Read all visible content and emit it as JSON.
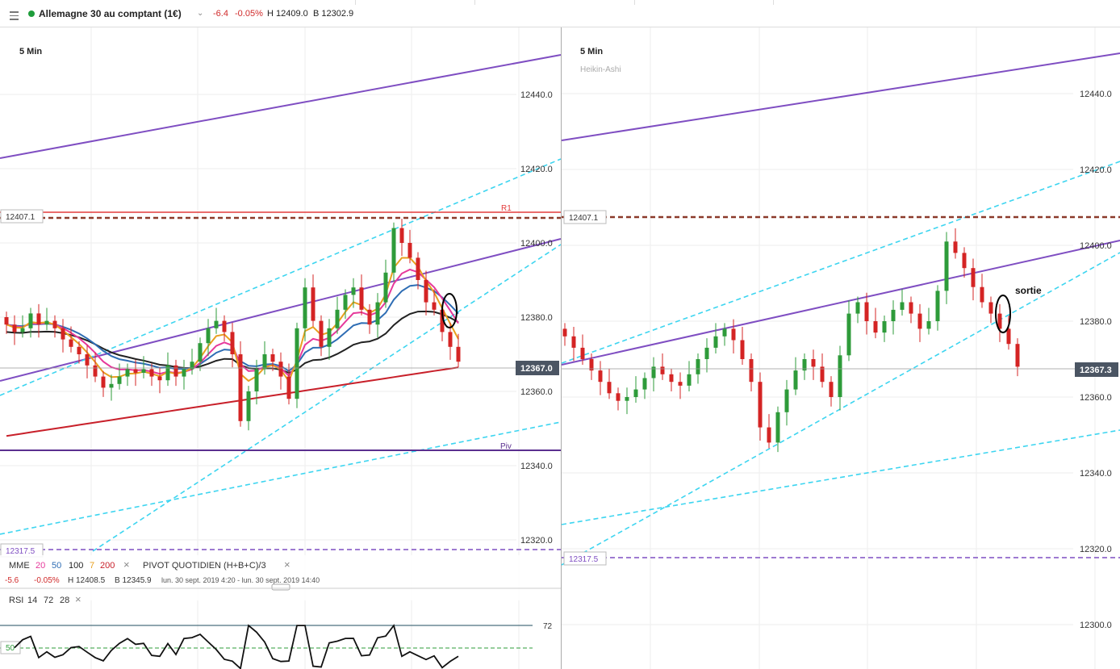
{
  "header": {
    "instrument": "Allemagne 30 au comptant (1€)",
    "change": "-6.4",
    "change_pct": "-0.05%",
    "high": "H 12409.0",
    "bid": "B 12302.9",
    "status_color": "#1f9d3b"
  },
  "left_chart": {
    "timeframe": "5 Min",
    "level_r1_tag": "12407.1",
    "r1_label": "R1",
    "piv_label": "Piv",
    "level_low_tag": "12317.5",
    "last_price_tag": "12367.0",
    "price_ticks": [
      "12440.0",
      "12420.0",
      "12400.0",
      "12380.0",
      "12360.0",
      "12340.0",
      "12320.0"
    ],
    "indicator_legend": {
      "name": "MME",
      "periods": [
        "20",
        "50",
        "100",
        "7",
        "200"
      ],
      "period_colors": [
        "#e6399b",
        "#2e6db4",
        "#222222",
        "#e8a020",
        "#c8202a"
      ],
      "pivot": "PIVOT QUOTIDIEN (H+B+C)/3",
      "stats_change": "-5.6",
      "stats_pct": "-0.05%",
      "stats_high": "H 12408.5",
      "stats_bid": "B 12345.9",
      "date_range": "lun. 30 sept. 2019 4:20 - lun. 30 sept. 2019 14:40"
    },
    "rsi": {
      "name": "RSI",
      "params": [
        "14",
        "72",
        "28"
      ],
      "levels": [
        "72",
        "50"
      ]
    }
  },
  "right_chart": {
    "timeframe": "5 Min",
    "style": "Heikin-Ashi",
    "level_r1_tag": "12407.1",
    "level_low_tag": "12317.5",
    "last_price_tag": "12367.3",
    "annotation": "sortie",
    "price_ticks": [
      "12440.0",
      "12420.0",
      "12400.0",
      "12380.0",
      "12360.0",
      "12340.0",
      "12320.0",
      "12300.0"
    ]
  },
  "chart_data": [
    {
      "type": "candlestick",
      "x_label": "",
      "y_label": "",
      "ylim": [
        12313,
        12452
      ],
      "series": [
        {
          "name": "Candles",
          "open_close_sequence_of_closes": [
            12378,
            12376,
            12377,
            12381,
            12378,
            12379,
            12377,
            12374,
            12372,
            12370,
            12367,
            12364,
            12361,
            12362,
            12364,
            12366,
            12365,
            12366,
            12364,
            12363,
            12367,
            12364,
            12366,
            12368,
            12373,
            12377,
            12379,
            12376,
            12370,
            12352,
            12360,
            12366,
            12370,
            12368,
            12364,
            12358,
            12377,
            12388,
            12379,
            12372,
            12377,
            12382,
            12386,
            12388,
            12382,
            12378,
            12384,
            12392,
            12404,
            12400,
            12396,
            12390,
            12384,
            12382,
            12376,
            12372,
            12368
          ]
        }
      ]
    },
    {
      "type": "candlestick",
      "style": "Heikin-Ashi",
      "ylim": [
        12293,
        12453
      ],
      "series": [
        {
          "name": "Heikin-Ashi",
          "closes": [
            12376,
            12373,
            12370,
            12367,
            12364,
            12361,
            12359,
            12360,
            12362,
            12365,
            12368,
            12366,
            12364,
            12363,
            12366,
            12370,
            12373,
            12376,
            12378,
            12375,
            12370,
            12364,
            12352,
            12348,
            12356,
            12362,
            12367,
            12370,
            12368,
            12364,
            12360,
            12371,
            12382,
            12385,
            12380,
            12377,
            12380,
            12383,
            12385,
            12382,
            12378,
            12380,
            12388,
            12401,
            12398,
            12394,
            12389,
            12385,
            12382,
            12378,
            12374,
            12368
          ]
        }
      ]
    }
  ]
}
